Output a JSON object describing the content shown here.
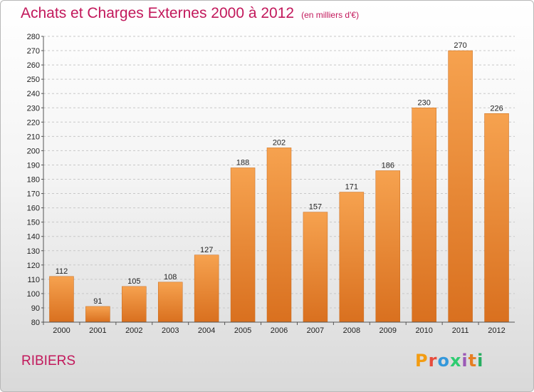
{
  "header": {
    "title": "Achats et Charges Externes 2000 à 2012",
    "unit": "(en milliers d'€)"
  },
  "footer": {
    "commune": "RIBIERS",
    "logo_letters": [
      "P",
      "r",
      "o",
      "x",
      "i",
      "t",
      "i"
    ],
    "logo_colors": [
      "#f39c12",
      "#e74c3c",
      "#3498db",
      "#2ecc71",
      "#9b59b6",
      "#e67e22",
      "#27ae60"
    ]
  },
  "chart_data": {
    "type": "bar",
    "title": "Achats et Charges Externes 2000 à 2012",
    "subtitle": "(en milliers d'€)",
    "categories": [
      "2000",
      "2001",
      "2002",
      "2003",
      "2004",
      "2005",
      "2006",
      "2007",
      "2008",
      "2009",
      "2010",
      "2011",
      "2012"
    ],
    "values": [
      112,
      91,
      105,
      108,
      127,
      188,
      202,
      157,
      171,
      186,
      230,
      270,
      226
    ],
    "ylim": [
      80,
      280
    ],
    "ytick_step": 10,
    "grid": "horizontal dashed",
    "bar_color_top": "#f6a24f",
    "bar_color_bottom": "#d9701f"
  }
}
